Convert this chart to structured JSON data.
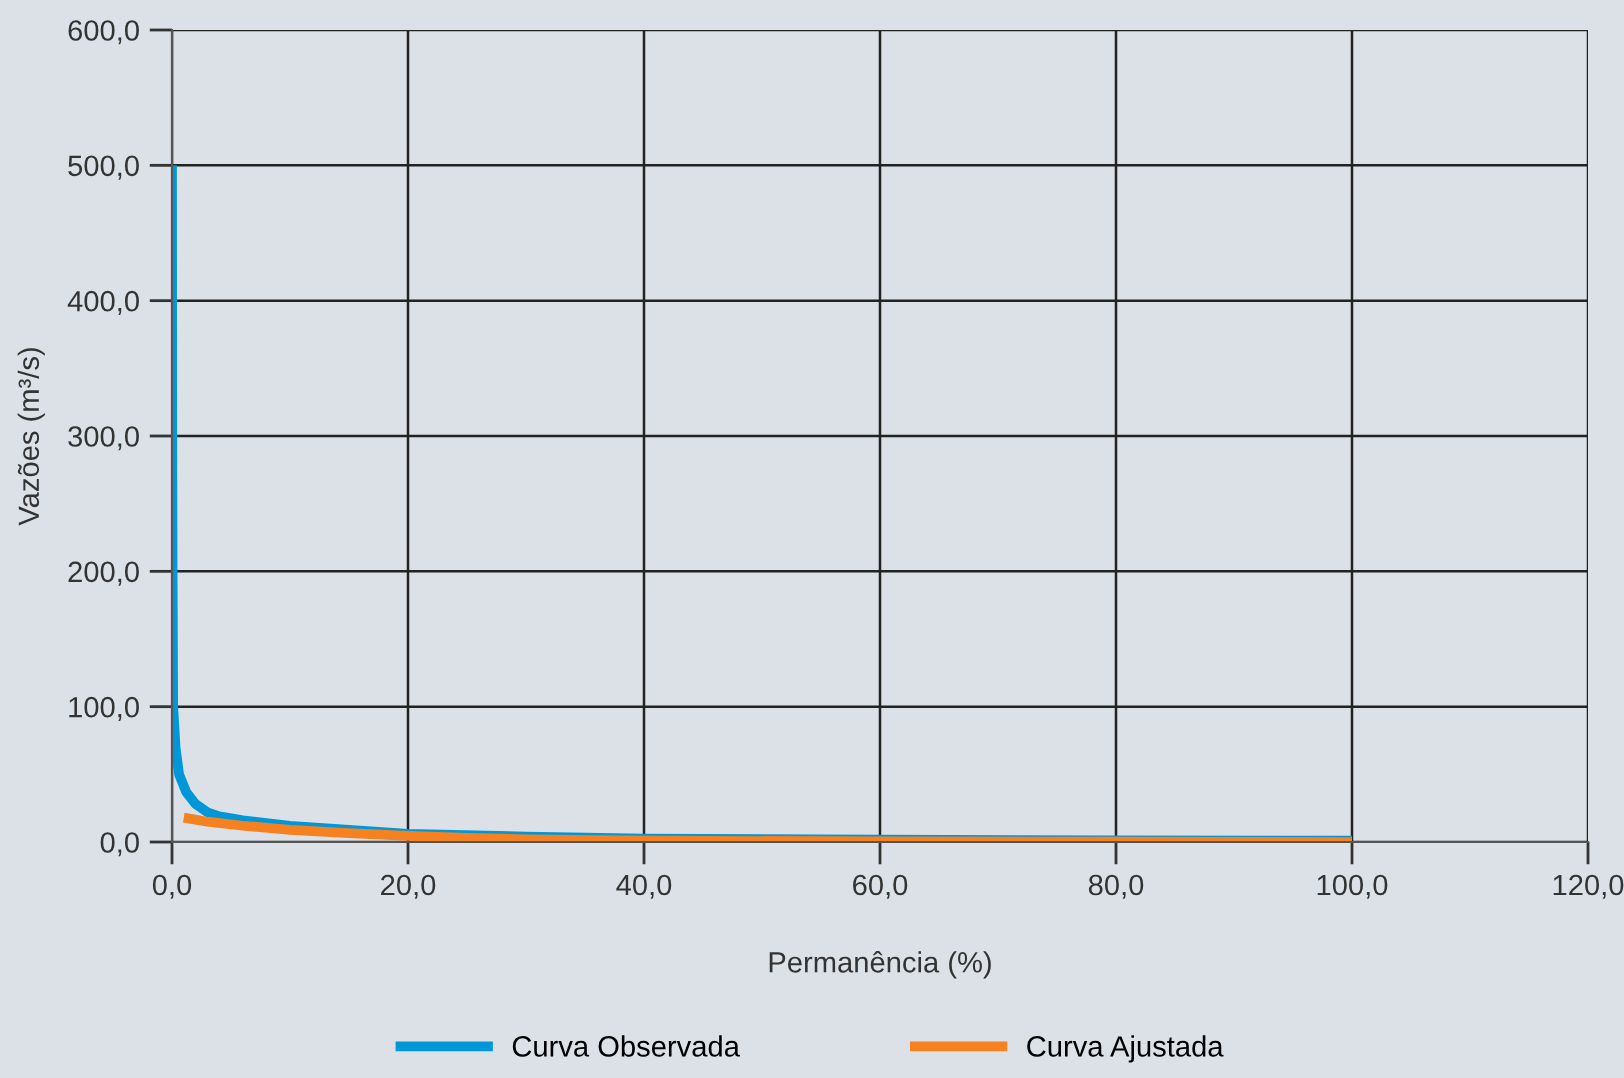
{
  "chart_data": {
    "type": "line",
    "xlabel": "Permanência (%)",
    "ylabel": "Vazões (m³/s)",
    "xlim": [
      0,
      120
    ],
    "xticks": [
      {
        "value": 0,
        "label": "0,0"
      },
      {
        "value": 20,
        "label": "20,0"
      },
      {
        "value": 40,
        "label": "40,0"
      },
      {
        "value": 60,
        "label": "60,0"
      },
      {
        "value": 80,
        "label": "80,0"
      },
      {
        "value": 100,
        "label": "100,0"
      },
      {
        "value": 120,
        "label": "120,0"
      }
    ],
    "ylim": [
      0,
      600
    ],
    "yticks": [
      {
        "value": 0,
        "label": "0,0"
      },
      {
        "value": 100,
        "label": "100,0"
      },
      {
        "value": 200,
        "label": "200,0"
      },
      {
        "value": 300,
        "label": "300,0"
      },
      {
        "value": 400,
        "label": "400,0"
      },
      {
        "value": 500,
        "label": "500,0"
      },
      {
        "value": 600,
        "label": "600,0"
      }
    ],
    "grid": true,
    "legend": "bottom",
    "marker": "none",
    "line_style": "solid",
    "series": [
      {
        "name": "Curva Observada",
        "color": "#0097d9",
        "x": [
          0,
          0.02,
          0.05,
          0.1,
          0.3,
          0.6,
          1.2,
          2,
          3,
          4,
          6,
          10,
          15,
          20,
          30,
          40,
          60,
          80,
          100
        ],
        "values": [
          500,
          300,
          200,
          100,
          70,
          50,
          37,
          28,
          22,
          19,
          16,
          12,
          9,
          6,
          4,
          2.5,
          1.8,
          1.2,
          1
        ]
      },
      {
        "name": "Curva Ajustada",
        "color": "#f68121",
        "x": [
          1,
          3,
          6,
          10,
          15,
          20,
          25,
          30,
          40,
          60,
          80,
          100
        ],
        "values": [
          18,
          15,
          12,
          9,
          6.5,
          4.5,
          3,
          2,
          1,
          0.5,
          0.2,
          0
        ]
      }
    ]
  }
}
